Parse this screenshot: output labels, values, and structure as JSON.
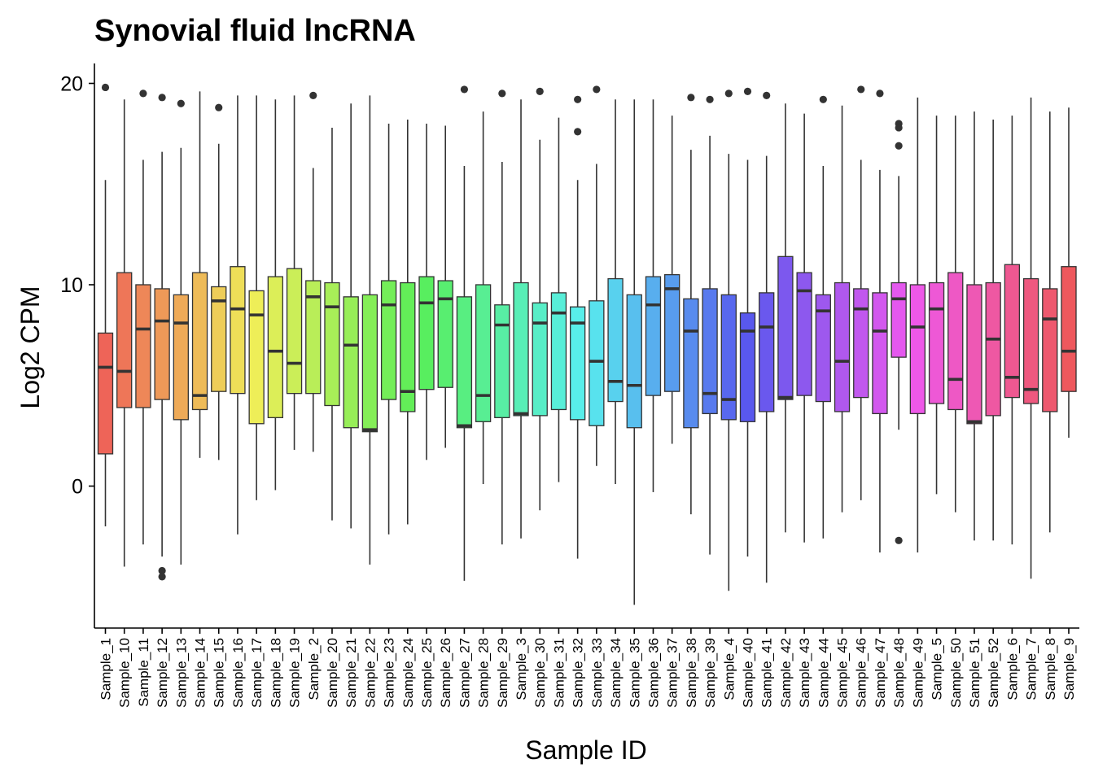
{
  "chart_data": {
    "type": "boxplot",
    "title": "Synovial fluid lncRNA",
    "xlabel": "Sample ID",
    "ylabel": "Log2 CPM",
    "ylim": [
      -7,
      21
    ],
    "yticks": [
      0,
      10,
      20
    ],
    "grid": false,
    "legend": "none",
    "categories": [
      "Sample_1",
      "Sample_10",
      "Sample_11",
      "Sample_12",
      "Sample_13",
      "Sample_14",
      "Sample_15",
      "Sample_16",
      "Sample_17",
      "Sample_18",
      "Sample_19",
      "Sample_2",
      "Sample_20",
      "Sample_21",
      "Sample_22",
      "Sample_23",
      "Sample_24",
      "Sample_25",
      "Sample_26",
      "Sample_27",
      "Sample_28",
      "Sample_29",
      "Sample_3",
      "Sample_30",
      "Sample_31",
      "Sample_32",
      "Sample_33",
      "Sample_34",
      "Sample_35",
      "Sample_36",
      "Sample_37",
      "Sample_38",
      "Sample_39",
      "Sample_4",
      "Sample_40",
      "Sample_41",
      "Sample_42",
      "Sample_43",
      "Sample_44",
      "Sample_45",
      "Sample_46",
      "Sample_47",
      "Sample_48",
      "Sample_49",
      "Sample_5",
      "Sample_50",
      "Sample_51",
      "Sample_52",
      "Sample_6",
      "Sample_7",
      "Sample_8",
      "Sample_9"
    ],
    "boxes": [
      {
        "min": -2.0,
        "q1": 1.6,
        "median": 5.9,
        "q3": 7.6,
        "max": 15.2,
        "outliers": [
          19.8
        ]
      },
      {
        "min": -4.0,
        "q1": 3.9,
        "median": 5.7,
        "q3": 10.6,
        "max": 19.2,
        "outliers": []
      },
      {
        "min": -2.9,
        "q1": 3.9,
        "median": 7.8,
        "q3": 10.0,
        "max": 16.2,
        "outliers": [
          19.5
        ]
      },
      {
        "min": -3.5,
        "q1": 4.3,
        "median": 8.2,
        "q3": 9.8,
        "max": 16.6,
        "outliers": [
          19.3,
          -4.2,
          -4.5
        ]
      },
      {
        "min": -3.9,
        "q1": 3.3,
        "median": 8.1,
        "q3": 9.5,
        "max": 16.8,
        "outliers": [
          19.0
        ]
      },
      {
        "min": 1.4,
        "q1": 3.8,
        "median": 4.5,
        "q3": 10.6,
        "max": 19.6,
        "outliers": []
      },
      {
        "min": 1.3,
        "q1": 4.7,
        "median": 9.2,
        "q3": 9.9,
        "max": 17.0,
        "outliers": [
          18.8
        ]
      },
      {
        "min": -2.4,
        "q1": 4.6,
        "median": 8.8,
        "q3": 10.9,
        "max": 19.4,
        "outliers": []
      },
      {
        "min": -0.7,
        "q1": 3.1,
        "median": 8.5,
        "q3": 9.7,
        "max": 19.4,
        "outliers": []
      },
      {
        "min": -0.2,
        "q1": 3.4,
        "median": 6.7,
        "q3": 10.4,
        "max": 19.2,
        "outliers": []
      },
      {
        "min": 1.8,
        "q1": 4.6,
        "median": 6.1,
        "q3": 10.8,
        "max": 19.4,
        "outliers": []
      },
      {
        "min": 1.7,
        "q1": 4.6,
        "median": 9.4,
        "q3": 10.2,
        "max": 15.8,
        "outliers": [
          19.4
        ]
      },
      {
        "min": -1.7,
        "q1": 4.0,
        "median": 8.9,
        "q3": 10.1,
        "max": 17.8,
        "outliers": []
      },
      {
        "min": -2.1,
        "q1": 2.9,
        "median": 7.0,
        "q3": 9.4,
        "max": 19.0,
        "outliers": []
      },
      {
        "min": -3.9,
        "q1": 2.7,
        "median": 2.8,
        "q3": 9.5,
        "max": 19.4,
        "outliers": []
      },
      {
        "min": -2.4,
        "q1": 4.3,
        "median": 9.0,
        "q3": 10.2,
        "max": 18.0,
        "outliers": []
      },
      {
        "min": -1.9,
        "q1": 3.7,
        "median": 4.7,
        "q3": 10.1,
        "max": 18.2,
        "outliers": []
      },
      {
        "min": 1.3,
        "q1": 4.8,
        "median": 9.1,
        "q3": 10.4,
        "max": 18.0,
        "outliers": []
      },
      {
        "min": 1.9,
        "q1": 4.9,
        "median": 9.3,
        "q3": 10.2,
        "max": 17.9,
        "outliers": []
      },
      {
        "min": -4.7,
        "q1": 2.9,
        "median": 3.0,
        "q3": 9.4,
        "max": 15.9,
        "outliers": [
          19.7
        ]
      },
      {
        "min": 0.1,
        "q1": 3.2,
        "median": 4.5,
        "q3": 10.0,
        "max": 18.6,
        "outliers": []
      },
      {
        "min": -2.9,
        "q1": 3.4,
        "median": 8.0,
        "q3": 9.0,
        "max": 16.1,
        "outliers": [
          19.5
        ]
      },
      {
        "min": -2.6,
        "q1": 3.5,
        "median": 3.6,
        "q3": 10.1,
        "max": 19.2,
        "outliers": []
      },
      {
        "min": -1.2,
        "q1": 3.5,
        "median": 8.1,
        "q3": 9.1,
        "max": 17.2,
        "outliers": [
          19.6
        ]
      },
      {
        "min": 0.2,
        "q1": 3.8,
        "median": 8.6,
        "q3": 9.6,
        "max": 18.3,
        "outliers": []
      },
      {
        "min": -3.6,
        "q1": 3.3,
        "median": 8.1,
        "q3": 8.9,
        "max": 15.2,
        "outliers": [
          19.2,
          17.6
        ]
      },
      {
        "min": 1.0,
        "q1": 3.0,
        "median": 6.2,
        "q3": 9.2,
        "max": 16.0,
        "outliers": [
          19.7
        ]
      },
      {
        "min": 0.1,
        "q1": 4.2,
        "median": 5.2,
        "q3": 10.3,
        "max": 19.2,
        "outliers": []
      },
      {
        "min": -5.9,
        "q1": 2.9,
        "median": 5.0,
        "q3": 9.5,
        "max": 19.2,
        "outliers": []
      },
      {
        "min": -0.3,
        "q1": 4.5,
        "median": 9.0,
        "q3": 10.4,
        "max": 19.2,
        "outliers": []
      },
      {
        "min": 2.1,
        "q1": 4.7,
        "median": 9.8,
        "q3": 10.5,
        "max": 18.4,
        "outliers": []
      },
      {
        "min": -1.4,
        "q1": 2.9,
        "median": 7.7,
        "q3": 9.3,
        "max": 16.7,
        "outliers": [
          19.3
        ]
      },
      {
        "min": -3.4,
        "q1": 3.6,
        "median": 4.6,
        "q3": 9.8,
        "max": 17.4,
        "outliers": [
          19.2
        ]
      },
      {
        "min": -5.2,
        "q1": 3.3,
        "median": 4.3,
        "q3": 9.5,
        "max": 16.5,
        "outliers": [
          19.5
        ]
      },
      {
        "min": -3.5,
        "q1": 3.2,
        "median": 7.7,
        "q3": 8.6,
        "max": 16.2,
        "outliers": [
          19.6
        ]
      },
      {
        "min": -4.8,
        "q1": 3.7,
        "median": 7.9,
        "q3": 9.6,
        "max": 16.4,
        "outliers": [
          19.4
        ]
      },
      {
        "min": -2.3,
        "q1": 4.3,
        "median": 4.4,
        "q3": 11.4,
        "max": 19.0,
        "outliers": []
      },
      {
        "min": -2.8,
        "q1": 4.5,
        "median": 9.7,
        "q3": 10.6,
        "max": 18.5,
        "outliers": []
      },
      {
        "min": -2.6,
        "q1": 4.2,
        "median": 8.7,
        "q3": 9.5,
        "max": 15.9,
        "outliers": [
          19.2
        ]
      },
      {
        "min": -1.3,
        "q1": 3.7,
        "median": 6.2,
        "q3": 10.1,
        "max": 18.9,
        "outliers": []
      },
      {
        "min": -0.7,
        "q1": 4.4,
        "median": 8.8,
        "q3": 9.8,
        "max": 16.2,
        "outliers": [
          19.7
        ]
      },
      {
        "min": -3.3,
        "q1": 3.6,
        "median": 7.7,
        "q3": 9.6,
        "max": 15.7,
        "outliers": [
          19.5
        ]
      },
      {
        "min": 2.8,
        "q1": 6.4,
        "median": 9.3,
        "q3": 10.1,
        "max": 15.4,
        "outliers": [
          18.0,
          17.8,
          16.9,
          -2.7
        ]
      },
      {
        "min": -3.3,
        "q1": 3.6,
        "median": 7.9,
        "q3": 10.0,
        "max": 19.3,
        "outliers": []
      },
      {
        "min": -0.4,
        "q1": 4.1,
        "median": 8.8,
        "q3": 10.1,
        "max": 18.4,
        "outliers": []
      },
      {
        "min": -1.3,
        "q1": 3.8,
        "median": 5.3,
        "q3": 10.6,
        "max": 18.4,
        "outliers": []
      },
      {
        "min": -2.7,
        "q1": 3.1,
        "median": 3.2,
        "q3": 10.0,
        "max": 18.6,
        "outliers": []
      },
      {
        "min": -2.7,
        "q1": 3.5,
        "median": 7.3,
        "q3": 10.1,
        "max": 18.2,
        "outliers": []
      },
      {
        "min": -2.9,
        "q1": 4.4,
        "median": 5.4,
        "q3": 11.0,
        "max": 18.4,
        "outliers": []
      },
      {
        "min": -4.6,
        "q1": 4.1,
        "median": 4.8,
        "q3": 10.3,
        "max": 19.3,
        "outliers": []
      },
      {
        "min": -2.3,
        "q1": 3.7,
        "median": 8.3,
        "q3": 9.8,
        "max": 18.6,
        "outliers": []
      },
      {
        "min": 2.4,
        "q1": 4.7,
        "median": 6.7,
        "q3": 10.9,
        "max": 18.8,
        "outliers": []
      }
    ]
  }
}
